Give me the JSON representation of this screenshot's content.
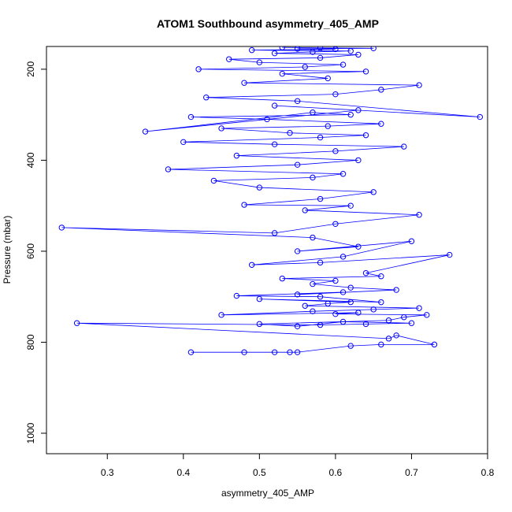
{
  "chart_data": {
    "type": "line",
    "title": "ATOM1 Southbound asymmetry_405_AMP",
    "xlabel": "asymmetry_405_AMP",
    "ylabel": "Pressure (mbar)",
    "xlim": [
      0.22,
      0.8
    ],
    "ylim": [
      1045,
      150
    ],
    "x_ticks": [
      0.3,
      0.4,
      0.5,
      0.6,
      0.7,
      0.8
    ],
    "x_tick_labels": [
      "0.3",
      "0.4",
      "0.5",
      "0.6",
      "0.7",
      "0.8"
    ],
    "y_ticks": [
      200,
      400,
      600,
      800,
      1000
    ],
    "y_tick_labels": [
      "200",
      "400",
      "600",
      "800",
      "1000"
    ],
    "grid": false,
    "legend": "none",
    "series": [
      {
        "color": "#0000ff",
        "marker": "open-circle",
        "x": [
          0.41,
          0.48,
          0.52,
          0.54,
          0.55,
          0.62,
          0.66,
          0.73,
          0.68,
          0.67,
          0.26,
          0.58,
          0.64,
          0.7,
          0.61,
          0.55,
          0.5,
          0.67,
          0.69,
          0.72,
          0.6,
          0.63,
          0.45,
          0.57,
          0.65,
          0.71,
          0.56,
          0.59,
          0.62,
          0.5,
          0.66,
          0.58,
          0.47,
          0.61,
          0.55,
          0.68,
          0.62,
          0.57,
          0.6,
          0.53,
          0.66,
          0.64,
          0.75,
          0.58,
          0.49,
          0.61,
          0.7,
          0.55,
          0.63,
          0.57,
          0.24,
          0.52,
          0.6,
          0.71,
          0.56,
          0.62,
          0.48,
          0.58,
          0.65,
          0.5,
          0.44,
          0.57,
          0.61,
          0.38,
          0.55,
          0.63,
          0.47,
          0.6,
          0.69,
          0.52,
          0.4,
          0.58,
          0.64,
          0.54,
          0.45,
          0.59,
          0.66,
          0.51,
          0.41,
          0.62,
          0.57,
          0.35,
          0.63,
          0.52,
          0.79,
          0.55,
          0.43,
          0.6,
          0.66,
          0.71,
          0.48,
          0.59,
          0.53,
          0.64,
          0.42,
          0.56,
          0.61,
          0.5,
          0.46,
          0.58,
          0.63,
          0.52,
          0.57,
          0.62,
          0.49,
          0.6,
          0.55,
          0.65,
          0.58,
          0.53
        ],
        "y": [
          822,
          822,
          822,
          822,
          822,
          808,
          805,
          805,
          785,
          792,
          758,
          762,
          760,
          758,
          755,
          765,
          760,
          752,
          745,
          740,
          738,
          735,
          740,
          732,
          728,
          725,
          720,
          715,
          712,
          705,
          712,
          700,
          698,
          690,
          695,
          685,
          680,
          672,
          665,
          660,
          655,
          648,
          608,
          625,
          630,
          612,
          578,
          600,
          590,
          570,
          548,
          560,
          540,
          520,
          510,
          500,
          498,
          485,
          470,
          460,
          445,
          438,
          430,
          420,
          410,
          400,
          390,
          380,
          370,
          365,
          360,
          350,
          345,
          340,
          330,
          325,
          320,
          310,
          305,
          300,
          295,
          337,
          290,
          280,
          305,
          270,
          262,
          255,
          245,
          235,
          230,
          220,
          210,
          205,
          200,
          195,
          190,
          185,
          178,
          175,
          168,
          165,
          162,
          160,
          158,
          156,
          155,
          154,
          153,
          152
        ]
      }
    ]
  }
}
